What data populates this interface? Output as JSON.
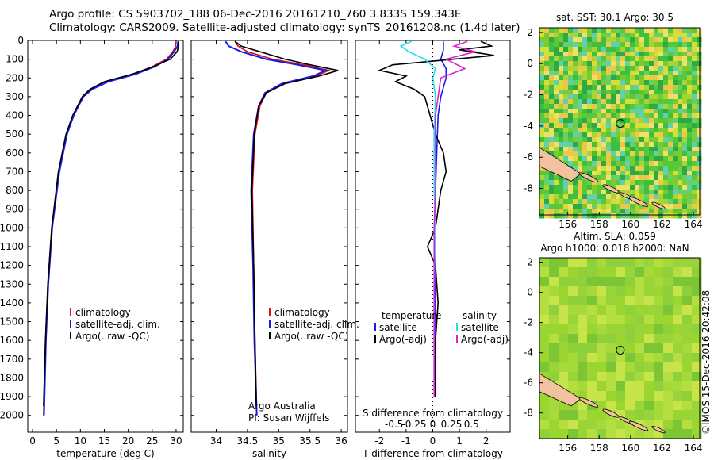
{
  "header": {
    "line1": "Argo profile: CS 5903702_188 06-Dec-2016 20161210_760 3.833S 159.343E",
    "line2": "Climatology: CARS2009. Satellite-adjusted climatology: synTS_20161208.nc (1.4d later)"
  },
  "colors": {
    "climatology": "#e0101a",
    "satellite": "#1a1ae6",
    "argo": "#000000",
    "sat_s": "#20e0f0",
    "argo_s": "#e020d0"
  },
  "depth_axis": {
    "ticks": [
      0,
      100,
      200,
      300,
      400,
      500,
      600,
      700,
      800,
      900,
      1000,
      1100,
      1200,
      1300,
      1400,
      1500,
      1600,
      1700,
      1800,
      1900,
      2000
    ],
    "range": [
      0,
      2090
    ]
  },
  "chart_data": [
    {
      "type": "line",
      "xlabel": "temperature (deg C)",
      "xlim": [
        -1,
        31.5
      ],
      "xticks": [
        0,
        5,
        10,
        15,
        20,
        25,
        30
      ],
      "legend": [
        "climatology",
        "satellite-adj. clim.",
        "Argo(..raw -QC)"
      ],
      "series": [
        {
          "name": "climatology",
          "depth": [
            5,
            30,
            60,
            100,
            140,
            180,
            220,
            260,
            300,
            400,
            500,
            700,
            1000,
            1300,
            1600,
            2000
          ],
          "values": [
            30.0,
            29.9,
            29.3,
            28.0,
            25.0,
            21.0,
            15.5,
            12.3,
            10.5,
            8.5,
            7.1,
            5.5,
            4.0,
            3.2,
            2.7,
            2.3
          ]
        },
        {
          "name": "satellite-adj. clim.",
          "depth": [
            5,
            30,
            60,
            100,
            140,
            180,
            220,
            260,
            300,
            400,
            500,
            700,
            1000,
            1300,
            1600,
            2000
          ],
          "values": [
            30.4,
            30.3,
            29.6,
            28.3,
            25.5,
            21.5,
            15.8,
            12.5,
            10.6,
            8.6,
            7.2,
            5.6,
            4.1,
            3.3,
            2.8,
            2.4
          ]
        },
        {
          "name": "Argo(..raw -QC)",
          "depth": [
            5,
            30,
            60,
            100,
            140,
            180,
            220,
            260,
            300,
            400,
            500,
            700,
            1000,
            1300,
            1600,
            1950
          ],
          "values": [
            30.5,
            30.5,
            30.2,
            28.8,
            25.2,
            20.8,
            15.0,
            12.0,
            10.4,
            8.4,
            7.0,
            5.4,
            4.0,
            3.2,
            2.7,
            2.3
          ]
        }
      ]
    },
    {
      "type": "line",
      "xlabel": "salinity",
      "xlim": [
        33.6,
        36.1
      ],
      "xticks": [
        34,
        34.5,
        35,
        35.5,
        36
      ],
      "legend": [
        "climatology",
        "satellite-adj. clim.",
        "Argo(..raw -QC)"
      ],
      "annotation": [
        "Argo Australia",
        "PI: Susan Wijffels"
      ],
      "series": [
        {
          "name": "climatology",
          "depth": [
            5,
            30,
            60,
            100,
            130,
            160,
            190,
            230,
            280,
            350,
            500,
            800,
            1200,
            1600,
            2000
          ],
          "values": [
            34.3,
            34.35,
            34.5,
            34.9,
            35.4,
            35.8,
            35.6,
            35.1,
            34.8,
            34.7,
            34.62,
            34.58,
            34.6,
            34.62,
            34.65
          ]
        },
        {
          "name": "satellite-adj. clim.",
          "depth": [
            5,
            30,
            60,
            100,
            130,
            160,
            190,
            230,
            280,
            350,
            500,
            800,
            1200,
            1600,
            2000
          ],
          "values": [
            34.15,
            34.2,
            34.4,
            34.8,
            35.3,
            35.75,
            35.55,
            35.05,
            34.78,
            34.68,
            34.6,
            34.56,
            34.59,
            34.61,
            34.65
          ]
        },
        {
          "name": "Argo(..raw -QC)",
          "depth": [
            5,
            30,
            60,
            100,
            130,
            160,
            190,
            230,
            280,
            350,
            500,
            800,
            1200,
            1600,
            1950
          ],
          "values": [
            34.3,
            34.4,
            34.7,
            35.1,
            35.5,
            35.95,
            35.65,
            35.1,
            34.8,
            34.68,
            34.61,
            34.57,
            34.6,
            34.62,
            34.64
          ]
        }
      ]
    },
    {
      "type": "line",
      "xlabel": "T difference from climatology",
      "xlabel2": "S difference from climatology",
      "xlim": [
        -2.9,
        2.9
      ],
      "xticks": [
        -2,
        -1,
        0,
        1,
        2
      ],
      "x2ticks": [
        "-0.5",
        "-0.25",
        "0",
        "0.25",
        "0.5"
      ],
      "legend_t": [
        "temperature",
        "satellite",
        "Argo(-adj)"
      ],
      "legend_s": [
        "salinity",
        "satellite",
        "Argo(-adj)"
      ],
      "series": [
        {
          "name": "temperature satellite",
          "depth": [
            5,
            50,
            100,
            150,
            200,
            300,
            400,
            600,
            800,
            1000,
            1300,
            1600,
            1900
          ],
          "values": [
            0.4,
            0.4,
            0.3,
            0.5,
            0.5,
            0.3,
            0.2,
            0.15,
            0.1,
            0.1,
            0.1,
            0.1,
            0.1
          ]
        },
        {
          "name": "temperature Argo(-adj)",
          "depth": [
            5,
            30,
            50,
            80,
            100,
            130,
            160,
            190,
            220,
            260,
            300,
            400,
            500,
            600,
            700,
            800,
            900,
            1000,
            1100,
            1200,
            1400,
            1600,
            1900
          ],
          "values": [
            1.8,
            2.2,
            1.0,
            2.3,
            0.8,
            -1.5,
            -2.0,
            -1.0,
            -1.4,
            -0.7,
            -0.3,
            -0.1,
            0.1,
            0.4,
            0.5,
            0.3,
            0.2,
            0.1,
            -0.2,
            0.1,
            0.2,
            0.1,
            0.1
          ]
        },
        {
          "name": "salinity satellite",
          "depth": [
            5,
            30,
            60,
            100,
            150,
            200,
            300,
            500,
            800,
            1000,
            1300,
            1600,
            1900
          ],
          "values": [
            -0.8,
            -1.2,
            -0.9,
            -0.3,
            0.1,
            0.0,
            0.1,
            0.05,
            0.05,
            0.1,
            0.05,
            0.05,
            0.05
          ]
        },
        {
          "name": "salinity Argo(-adj)",
          "depth": [
            5,
            30,
            60,
            100,
            150,
            200,
            300,
            400,
            600,
            800,
            1000,
            1300,
            1600,
            1900
          ],
          "values": [
            1.3,
            0.8,
            1.6,
            0.5,
            1.2,
            0.3,
            0.2,
            0.1,
            0.1,
            0.1,
            0.05,
            0.05,
            0.05,
            0.05
          ]
        }
      ]
    },
    {
      "type": "heatmap",
      "title": "sat. SST: 30.1  Argo: 30.5",
      "xlim": [
        154.2,
        164.4
      ],
      "ylim": [
        -9.7,
        2.3
      ],
      "xticks": [
        156,
        158,
        160,
        162,
        164
      ],
      "yticks": [
        2,
        0,
        -2,
        -4,
        -6,
        -8
      ],
      "argo_position": {
        "lon": 159.343,
        "lat": -3.833
      }
    },
    {
      "type": "heatmap",
      "title": "Altim. SLA: 0.059",
      "subtitle": "Argo h1000: 0.018  h2000: NaN",
      "xlim": [
        154.2,
        164.4
      ],
      "ylim": [
        -9.7,
        2.3
      ],
      "xticks": [
        156,
        158,
        160,
        162,
        164
      ],
      "yticks": [
        2,
        0,
        -2,
        -4,
        -6,
        -8
      ],
      "argo_position": {
        "lon": 159.343,
        "lat": -3.833
      }
    }
  ],
  "credit": "©IMOS 15-Dec-2016 20:42:08"
}
